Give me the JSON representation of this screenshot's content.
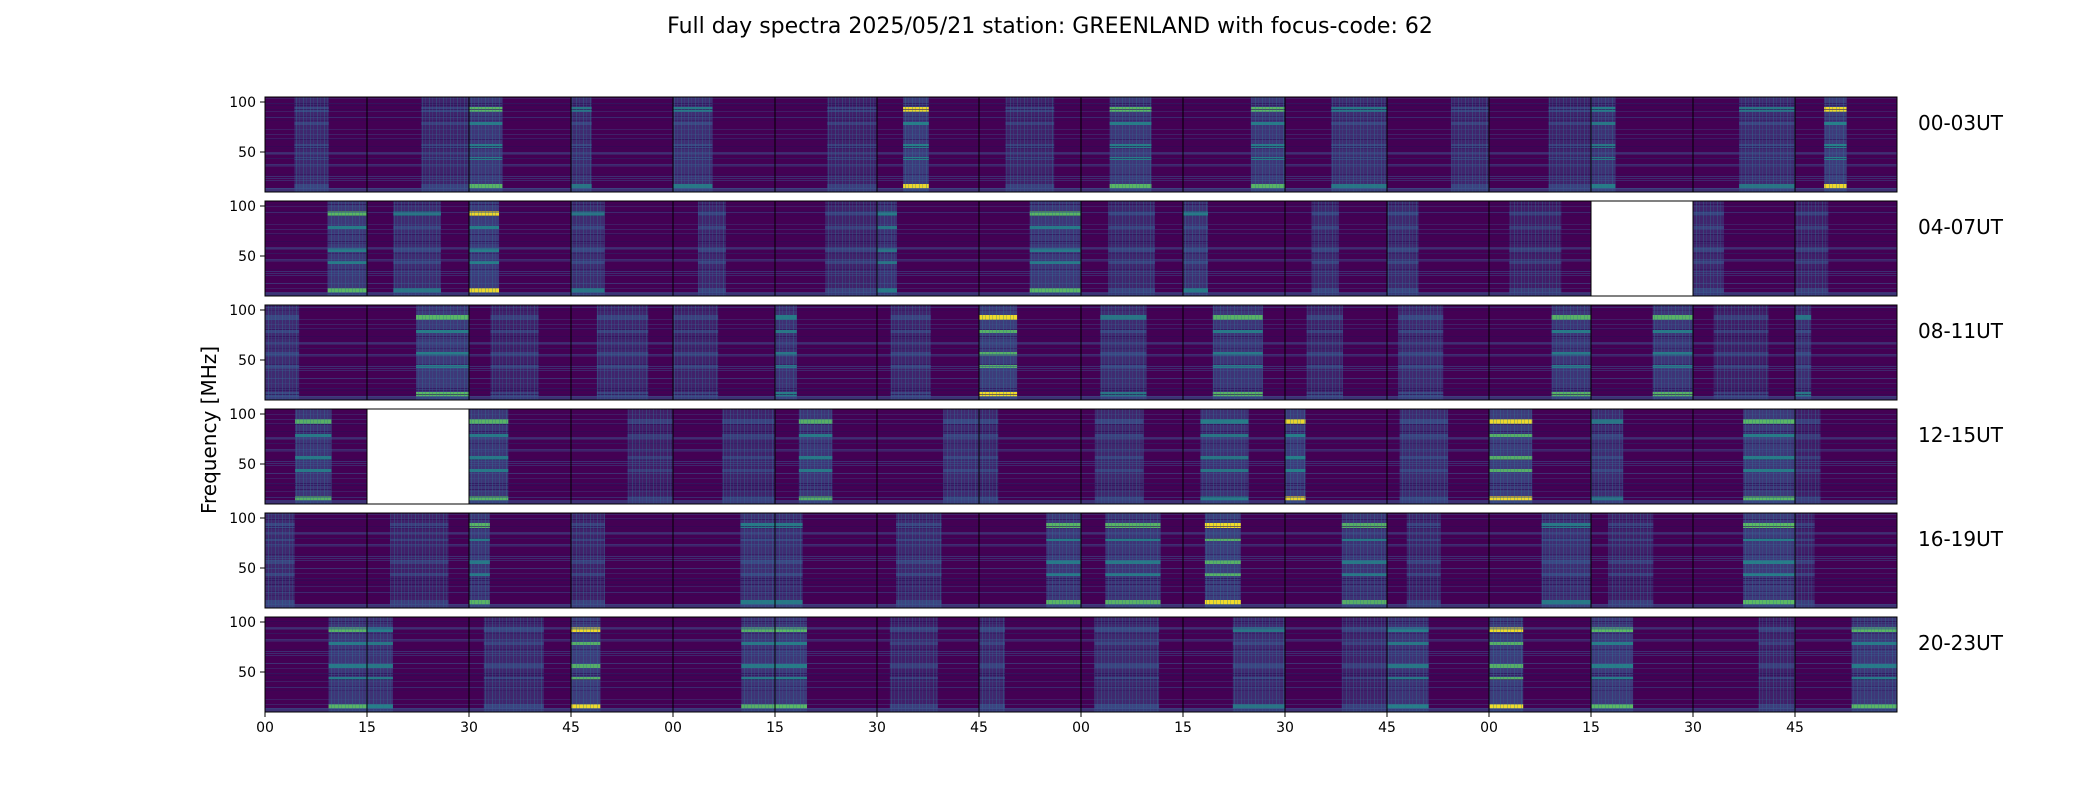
{
  "title": "Full day spectra 2025/05/21 station: GREENLAND with focus-code: 62",
  "chart_data": {
    "type": "heatmap",
    "ylabel": "Frequency [MHz]",
    "yticks": [
      50,
      100
    ],
    "ylim": [
      10,
      105
    ],
    "xticks": [
      "00",
      "15",
      "30",
      "45",
      "00",
      "15",
      "30",
      "45",
      "00",
      "15",
      "30",
      "45",
      "00",
      "15",
      "30",
      "45"
    ],
    "panels_per_row": 16,
    "row_labels": [
      "00-03UT",
      "04-07UT",
      "08-11UT",
      "12-15UT",
      "16-19UT",
      "20-23UT"
    ],
    "colormap": [
      "#440154",
      "#3b528b",
      "#21918c",
      "#5ec962",
      "#fde725"
    ],
    "missing_panels": [
      {
        "row": "04-07UT",
        "panel": 13
      },
      {
        "row": "12-15UT",
        "panel": 1
      }
    ]
  }
}
